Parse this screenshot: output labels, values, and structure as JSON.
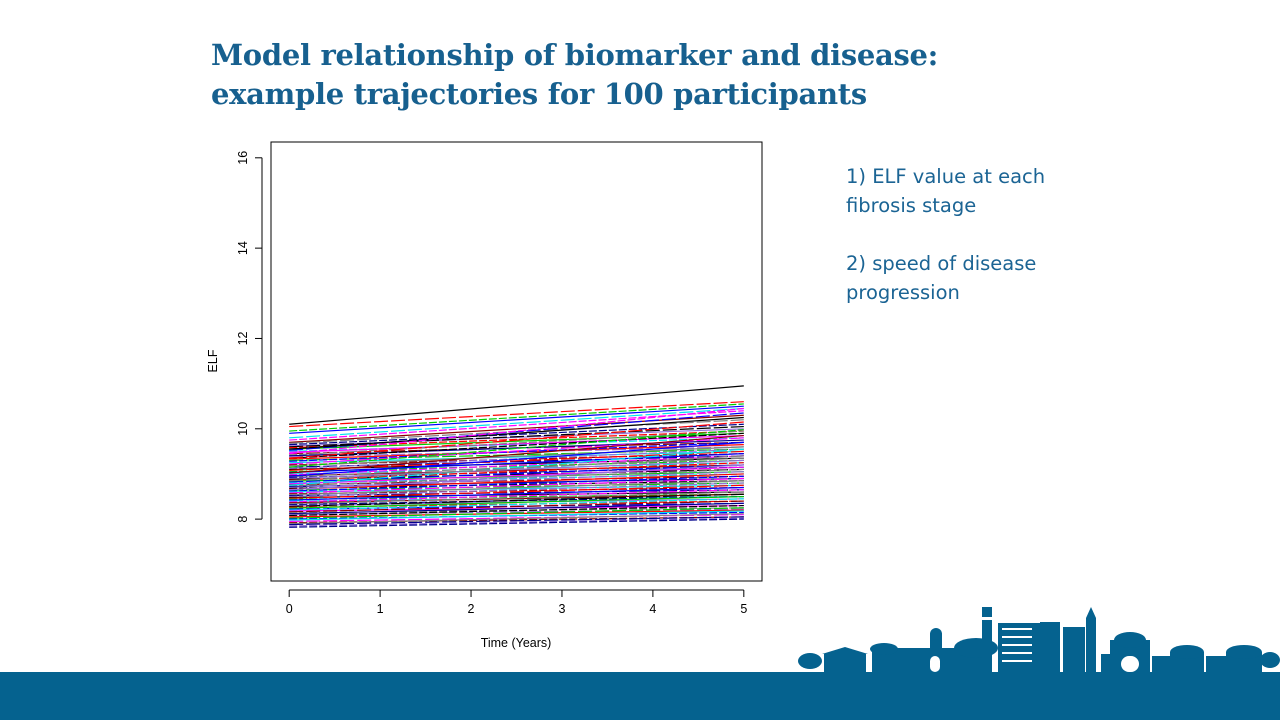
{
  "slide": {
    "title_line1": "Model relationship of biomarker and disease:",
    "title_line2": "example trajectories for 100 participants",
    "notes": [
      "1) ELF value at each fibrosis stage",
      "2) speed of disease progression"
    ]
  },
  "colors": {
    "accent": "#17608f",
    "footer": "#05628f"
  },
  "chart_data": {
    "type": "line",
    "title": "",
    "xlabel": "Time (Years)",
    "ylabel": "ELF",
    "xlim": [
      -0.2,
      5.2
    ],
    "ylim": [
      6.63,
      16.35
    ],
    "xticks": [
      0,
      1,
      2,
      3,
      4,
      5
    ],
    "yticks": [
      8,
      10,
      12,
      14,
      16
    ],
    "grid": false,
    "legend": "none",
    "x": [
      0,
      5
    ],
    "palette": [
      "#000000",
      "#ff0000",
      "#00cd00",
      "#0000ff",
      "#00e5ee",
      "#ff00ff",
      "#8b0000",
      "#808080",
      "#00008b",
      "#9370db"
    ],
    "series_start_end": [
      [
        10.1,
        10.95
      ],
      [
        10.05,
        10.6
      ],
      [
        9.95,
        10.55
      ],
      [
        9.9,
        10.5
      ],
      [
        9.8,
        10.45
      ],
      [
        9.75,
        10.4
      ],
      [
        9.7,
        10.3
      ],
      [
        9.68,
        10.2
      ],
      [
        9.65,
        10.1
      ],
      [
        9.62,
        10.0
      ],
      [
        9.6,
        10.05
      ],
      [
        9.58,
        9.95
      ],
      [
        9.55,
        9.9
      ],
      [
        9.52,
        10.35
      ],
      [
        9.5,
        9.8
      ],
      [
        9.48,
        9.85
      ],
      [
        9.45,
        9.7
      ],
      [
        9.42,
        9.95
      ],
      [
        9.4,
        9.75
      ],
      [
        9.38,
        9.6
      ],
      [
        9.35,
        9.9
      ],
      [
        9.33,
        9.65
      ],
      [
        9.3,
        9.55
      ],
      [
        9.28,
        9.7
      ],
      [
        9.25,
        9.5
      ],
      [
        9.22,
        9.8
      ],
      [
        9.2,
        9.45
      ],
      [
        9.18,
        9.6
      ],
      [
        9.15,
        9.4
      ],
      [
        9.12,
        9.55
      ],
      [
        9.1,
        9.35
      ],
      [
        9.08,
        9.5
      ],
      [
        9.05,
        9.3
      ],
      [
        9.03,
        9.45
      ],
      [
        9.0,
        9.25
      ],
      [
        8.98,
        9.4
      ],
      [
        8.96,
        9.2
      ],
      [
        8.94,
        9.35
      ],
      [
        8.92,
        9.15
      ],
      [
        8.9,
        9.3
      ],
      [
        8.88,
        9.1
      ],
      [
        8.86,
        9.25
      ],
      [
        8.84,
        9.05
      ],
      [
        8.82,
        9.2
      ],
      [
        8.8,
        9.0
      ],
      [
        8.78,
        9.15
      ],
      [
        8.76,
        8.95
      ],
      [
        8.74,
        9.1
      ],
      [
        8.72,
        8.9
      ],
      [
        8.7,
        9.05
      ],
      [
        8.68,
        8.85
      ],
      [
        8.66,
        9.0
      ],
      [
        8.64,
        8.8
      ],
      [
        8.62,
        8.95
      ],
      [
        8.6,
        8.75
      ],
      [
        8.58,
        8.9
      ],
      [
        8.56,
        8.7
      ],
      [
        8.54,
        8.85
      ],
      [
        8.52,
        8.65
      ],
      [
        8.5,
        8.8
      ],
      [
        8.48,
        8.6
      ],
      [
        8.46,
        8.75
      ],
      [
        8.44,
        8.55
      ],
      [
        8.42,
        8.7
      ],
      [
        8.4,
        8.5
      ],
      [
        8.38,
        8.65
      ],
      [
        8.36,
        8.55
      ],
      [
        8.34,
        8.6
      ],
      [
        8.32,
        8.5
      ],
      [
        8.3,
        8.45
      ],
      [
        8.28,
        8.55
      ],
      [
        8.26,
        8.4
      ],
      [
        8.24,
        8.5
      ],
      [
        8.22,
        8.35
      ],
      [
        8.2,
        8.45
      ],
      [
        8.18,
        8.3
      ],
      [
        8.16,
        8.4
      ],
      [
        8.14,
        8.25
      ],
      [
        8.12,
        8.35
      ],
      [
        8.1,
        8.22
      ],
      [
        8.08,
        8.3
      ],
      [
        8.05,
        8.2
      ],
      [
        8.02,
        8.25
      ],
      [
        8.0,
        8.15
      ],
      [
        7.98,
        8.18
      ],
      [
        7.95,
        8.1
      ],
      [
        7.92,
        8.05
      ],
      [
        7.9,
        8.12
      ],
      [
        7.88,
        8.05
      ],
      [
        7.85,
        8.02
      ],
      [
        9.55,
        10.25
      ],
      [
        9.35,
        10.15
      ],
      [
        9.15,
        9.98
      ],
      [
        8.95,
        9.7
      ],
      [
        8.75,
        9.55
      ],
      [
        9.45,
        10.45
      ],
      [
        9.02,
        9.85
      ],
      [
        8.85,
        9.4
      ],
      [
        7.82,
        8.0
      ],
      [
        8.65,
        9.2
      ]
    ]
  }
}
